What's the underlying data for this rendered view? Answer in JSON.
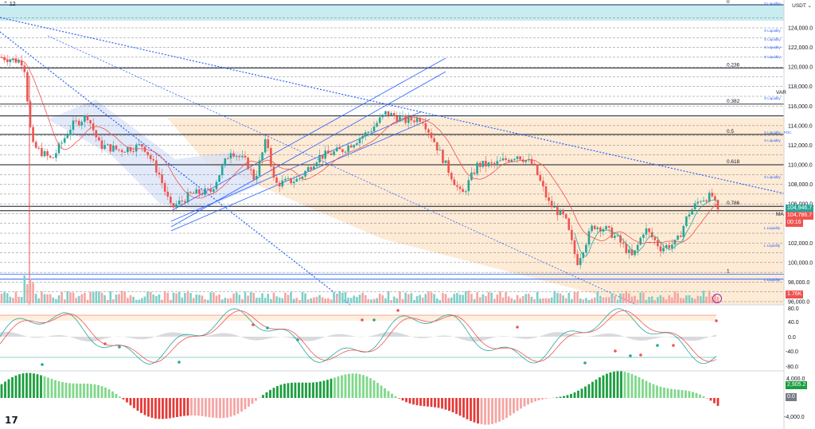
{
  "header": {
    "symbol_badge": "12",
    "currency": "USDT"
  },
  "price_axis": {
    "ticks": [
      "124,000.0",
      "122,000.0",
      "120,000.0",
      "118,000.0",
      "116,000.0",
      "114,000.0",
      "112,000.0",
      "110,000.0",
      "108,000.0",
      "106,000.0",
      "102,000.0",
      "100,000.0",
      "98,000.0",
      "96,000.0"
    ],
    "current_price_a": "104,946.7",
    "current_price_b": "104,786.7",
    "countdown": "00:16",
    "volume_tag": "1.76K"
  },
  "fib_levels": [
    {
      "label": "0",
      "price": 126000
    },
    {
      "label": "0.236",
      "price": 119900
    },
    {
      "label": "0.382",
      "price": 116200
    },
    {
      "label": "0.5",
      "price": 113100
    },
    {
      "label": "0.618",
      "price": 110000
    },
    {
      "label": "0.786",
      "price": 105750
    },
    {
      "label": "1",
      "price": 98800
    }
  ],
  "liquidity_labels": [
    "S Liquidity",
    "S Liquidity",
    "S Liquidity",
    "S Liquidity",
    "S Liquidity",
    "S Liquidity",
    "S Liquidity - POC",
    "S Liquidity",
    "S Liquidity",
    "L Liquidity",
    "L Liquidity",
    "L Liquidity"
  ],
  "misc_labels": {
    "vwap": "VAR",
    "ma": "MA"
  },
  "stoch_axis": {
    "ticks": [
      "80.0",
      "40.0",
      "0.0",
      "-40.0",
      "-80.0"
    ]
  },
  "macd_axis": {
    "ticks": [
      "4,000.0",
      "0.0",
      "-4,000.0"
    ],
    "value": "2,905.2",
    "zero": "0.0"
  },
  "colors": {
    "up": "#26a69a",
    "down": "#ef5350",
    "fib": "#131722",
    "liq": "#2962ff",
    "short_zone": "#fde8cf",
    "long_zone": "#c8ecf0"
  }
}
